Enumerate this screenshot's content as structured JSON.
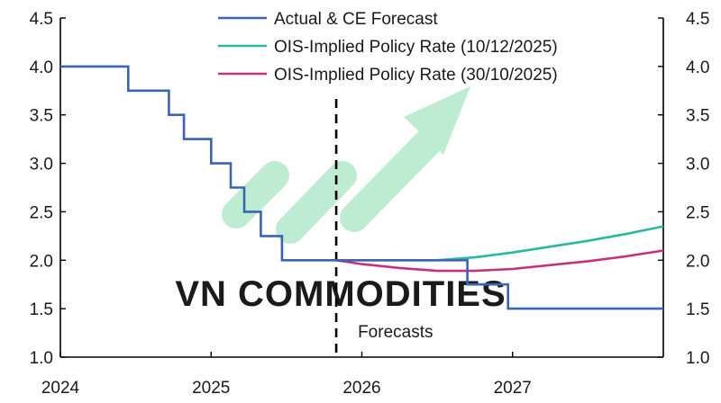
{
  "colors": {
    "actual": "#3a64b4",
    "ois_dec": "#2ab7a4",
    "ois_oct": "#c8307e",
    "axis": "#000000",
    "watermark_green": "#a8e6c4",
    "watermark_text": "#d3d7dc"
  },
  "watermark": {
    "text": "VN COMMODITIES"
  },
  "chart_data": {
    "type": "line",
    "x_ticks": [
      "2024",
      "2025",
      "2026",
      "2027"
    ],
    "x_range": [
      2024.0,
      2028.0
    ],
    "y_ticks": [
      "1.0",
      "1.5",
      "2.0",
      "2.5",
      "3.0",
      "3.5",
      "4.0",
      "4.5"
    ],
    "ylim": [
      1.0,
      4.5
    ],
    "grid": false,
    "legend_position": "top-center",
    "forecast_start": 2025.83,
    "annotation": "Forecasts",
    "series": [
      {
        "name": "Actual & CE Forecast",
        "step": true,
        "x": [
          2024.0,
          2024.45,
          2024.72,
          2024.82,
          2025.0,
          2025.13,
          2025.22,
          2025.33,
          2025.47,
          2025.83,
          2026.5,
          2026.7,
          2026.97,
          2028.0
        ],
        "values": [
          4.0,
          3.75,
          3.5,
          3.25,
          3.0,
          2.75,
          2.5,
          2.25,
          2.0,
          2.0,
          2.0,
          1.75,
          1.5,
          1.5
        ]
      },
      {
        "name": "OIS-Implied Policy Rate (10/12/2025)",
        "step": false,
        "x": [
          2025.83,
          2026.0,
          2026.25,
          2026.5,
          2026.75,
          2027.0,
          2027.25,
          2027.5,
          2027.75,
          2028.0
        ],
        "values": [
          2.0,
          2.0,
          2.0,
          2.0,
          2.03,
          2.08,
          2.14,
          2.2,
          2.27,
          2.35
        ]
      },
      {
        "name": "OIS-Implied Policy Rate (30/10/2025)",
        "step": false,
        "x": [
          2025.83,
          2026.0,
          2026.25,
          2026.5,
          2026.75,
          2027.0,
          2027.25,
          2027.5,
          2027.75,
          2028.0
        ],
        "values": [
          2.0,
          1.96,
          1.92,
          1.89,
          1.89,
          1.91,
          1.95,
          1.99,
          2.04,
          2.1
        ]
      }
    ]
  }
}
